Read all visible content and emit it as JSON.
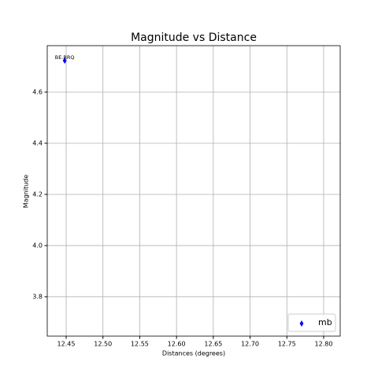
{
  "chart_data": {
    "type": "scatter",
    "title": "Magnitude vs Distance",
    "x_label": "Distances (degrees)",
    "y_label": "Magnitude",
    "series": [
      {
        "name": "mb",
        "color": "#0000ff",
        "marker": "diamond",
        "x": [
          12.448
        ],
        "values": [
          4.723
        ],
        "point_labels": [
          "BE.RRQ"
        ]
      }
    ],
    "xlim": [
      12.4243,
      12.8225
    ],
    "xticks": [
      12.45,
      {
        "value": 12.5,
        "label": "12.50"
      },
      12.55,
      {
        "value": 12.6,
        "label": "12.60"
      },
      12.65,
      {
        "value": 12.7,
        "label": "12.70"
      },
      12.75,
      {
        "value": 12.8,
        "label": "12.80"
      }
    ],
    "ylim": [
      3.646,
      4.7815
    ],
    "yticks": [
      3.8,
      {
        "value": 4.0,
        "label": "4.0"
      },
      4.2,
      4.4,
      4.6
    ],
    "grid": true,
    "legend": "lower right"
  }
}
